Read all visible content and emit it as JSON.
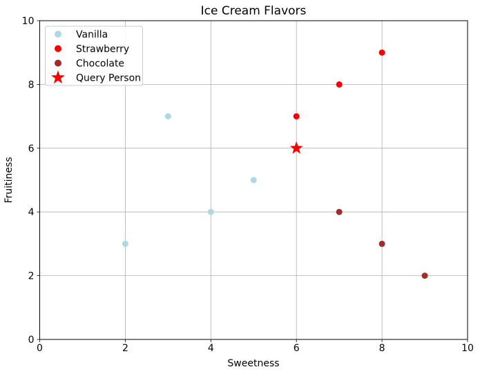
{
  "chart_data": {
    "type": "scatter",
    "title": "Ice Cream Flavors",
    "xlabel": "Sweetness",
    "ylabel": "Fruitiness",
    "xlim": [
      0,
      10
    ],
    "ylim": [
      0,
      10
    ],
    "xticks": [
      0,
      2,
      4,
      6,
      8,
      10
    ],
    "yticks": [
      0,
      2,
      4,
      6,
      8,
      10
    ],
    "grid": true,
    "grid_color": "#b0b0b0",
    "spine_color": "#000000",
    "legend_position": "upper left",
    "legend_border_color": "#cccccc",
    "legend_background": "#ffffff",
    "series": [
      {
        "name": "Vanilla",
        "marker": "circle",
        "color": "#add8e6",
        "points": [
          [
            2,
            3
          ],
          [
            3,
            7
          ],
          [
            4,
            4
          ],
          [
            5,
            5
          ]
        ]
      },
      {
        "name": "Strawberry",
        "marker": "circle",
        "color": "#ff0000",
        "points": [
          [
            6,
            7
          ],
          [
            7,
            8
          ],
          [
            8,
            9
          ]
        ]
      },
      {
        "name": "Chocolate",
        "marker": "circle",
        "color": "#a52a2a",
        "points": [
          [
            7,
            4
          ],
          [
            8,
            3
          ],
          [
            9,
            2
          ]
        ]
      },
      {
        "name": "Query Person",
        "marker": "star",
        "color": "#ff0000",
        "points": [
          [
            6,
            6
          ]
        ]
      }
    ]
  }
}
